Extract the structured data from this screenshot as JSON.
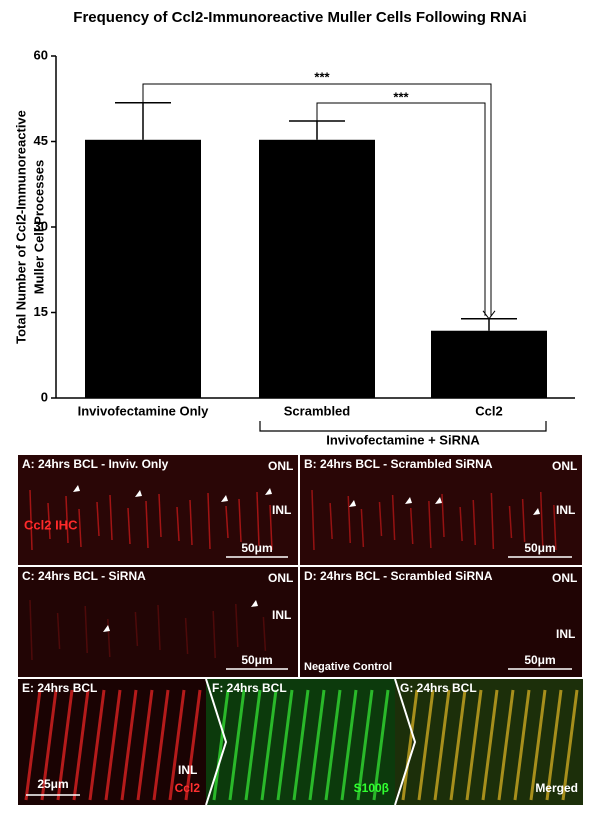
{
  "chart_data": {
    "type": "bar",
    "title": "Frequency of Ccl2-Immunoreactive Muller Cells Following RNAi",
    "y_label": [
      "Total Number of Ccl2-Immunoreactive",
      "Muller Cell Processes"
    ],
    "categories": [
      "Invivofectamine Only",
      "Scrambled",
      "Ccl2"
    ],
    "values": [
      45.3,
      45.3,
      11.8
    ],
    "errors": [
      6.5,
      3.3,
      2.1
    ],
    "color": "#000000",
    "ylim": [
      0,
      60
    ],
    "yticks": [
      0,
      15,
      30,
      45,
      60
    ],
    "annotations": [
      "***",
      "***"
    ],
    "group_label": "Invivofectamine + SiRNA"
  },
  "panels": [
    {
      "title": "A: 24hrs BCL - Inviv. Only",
      "layers": [
        "ONL",
        "INL"
      ],
      "stain": "Ccl2 IHC",
      "scale": "50μm"
    },
    {
      "title": "B: 24hrs BCL - Scrambled SiRNA",
      "layers": [
        "ONL",
        "INL"
      ],
      "scale": "50μm"
    },
    {
      "title": "C: 24hrs BCL - SiRNA",
      "layers": [
        "ONL",
        "INL"
      ],
      "scale": "50μm"
    },
    {
      "title": "D: 24hrs BCL - Scrambled SiRNA",
      "layers": [
        "ONL",
        "INL"
      ],
      "note": "Negative Control",
      "scale": "50μm"
    },
    {
      "title": "E: 24hrs BCL",
      "layers": [
        "INL"
      ],
      "scale": "25μm",
      "stain": "Ccl2"
    },
    {
      "title": "F: 24hrs BCL",
      "stain": "S100β"
    },
    {
      "title": "G: 24hrs BCL",
      "stain": "Merged"
    }
  ]
}
